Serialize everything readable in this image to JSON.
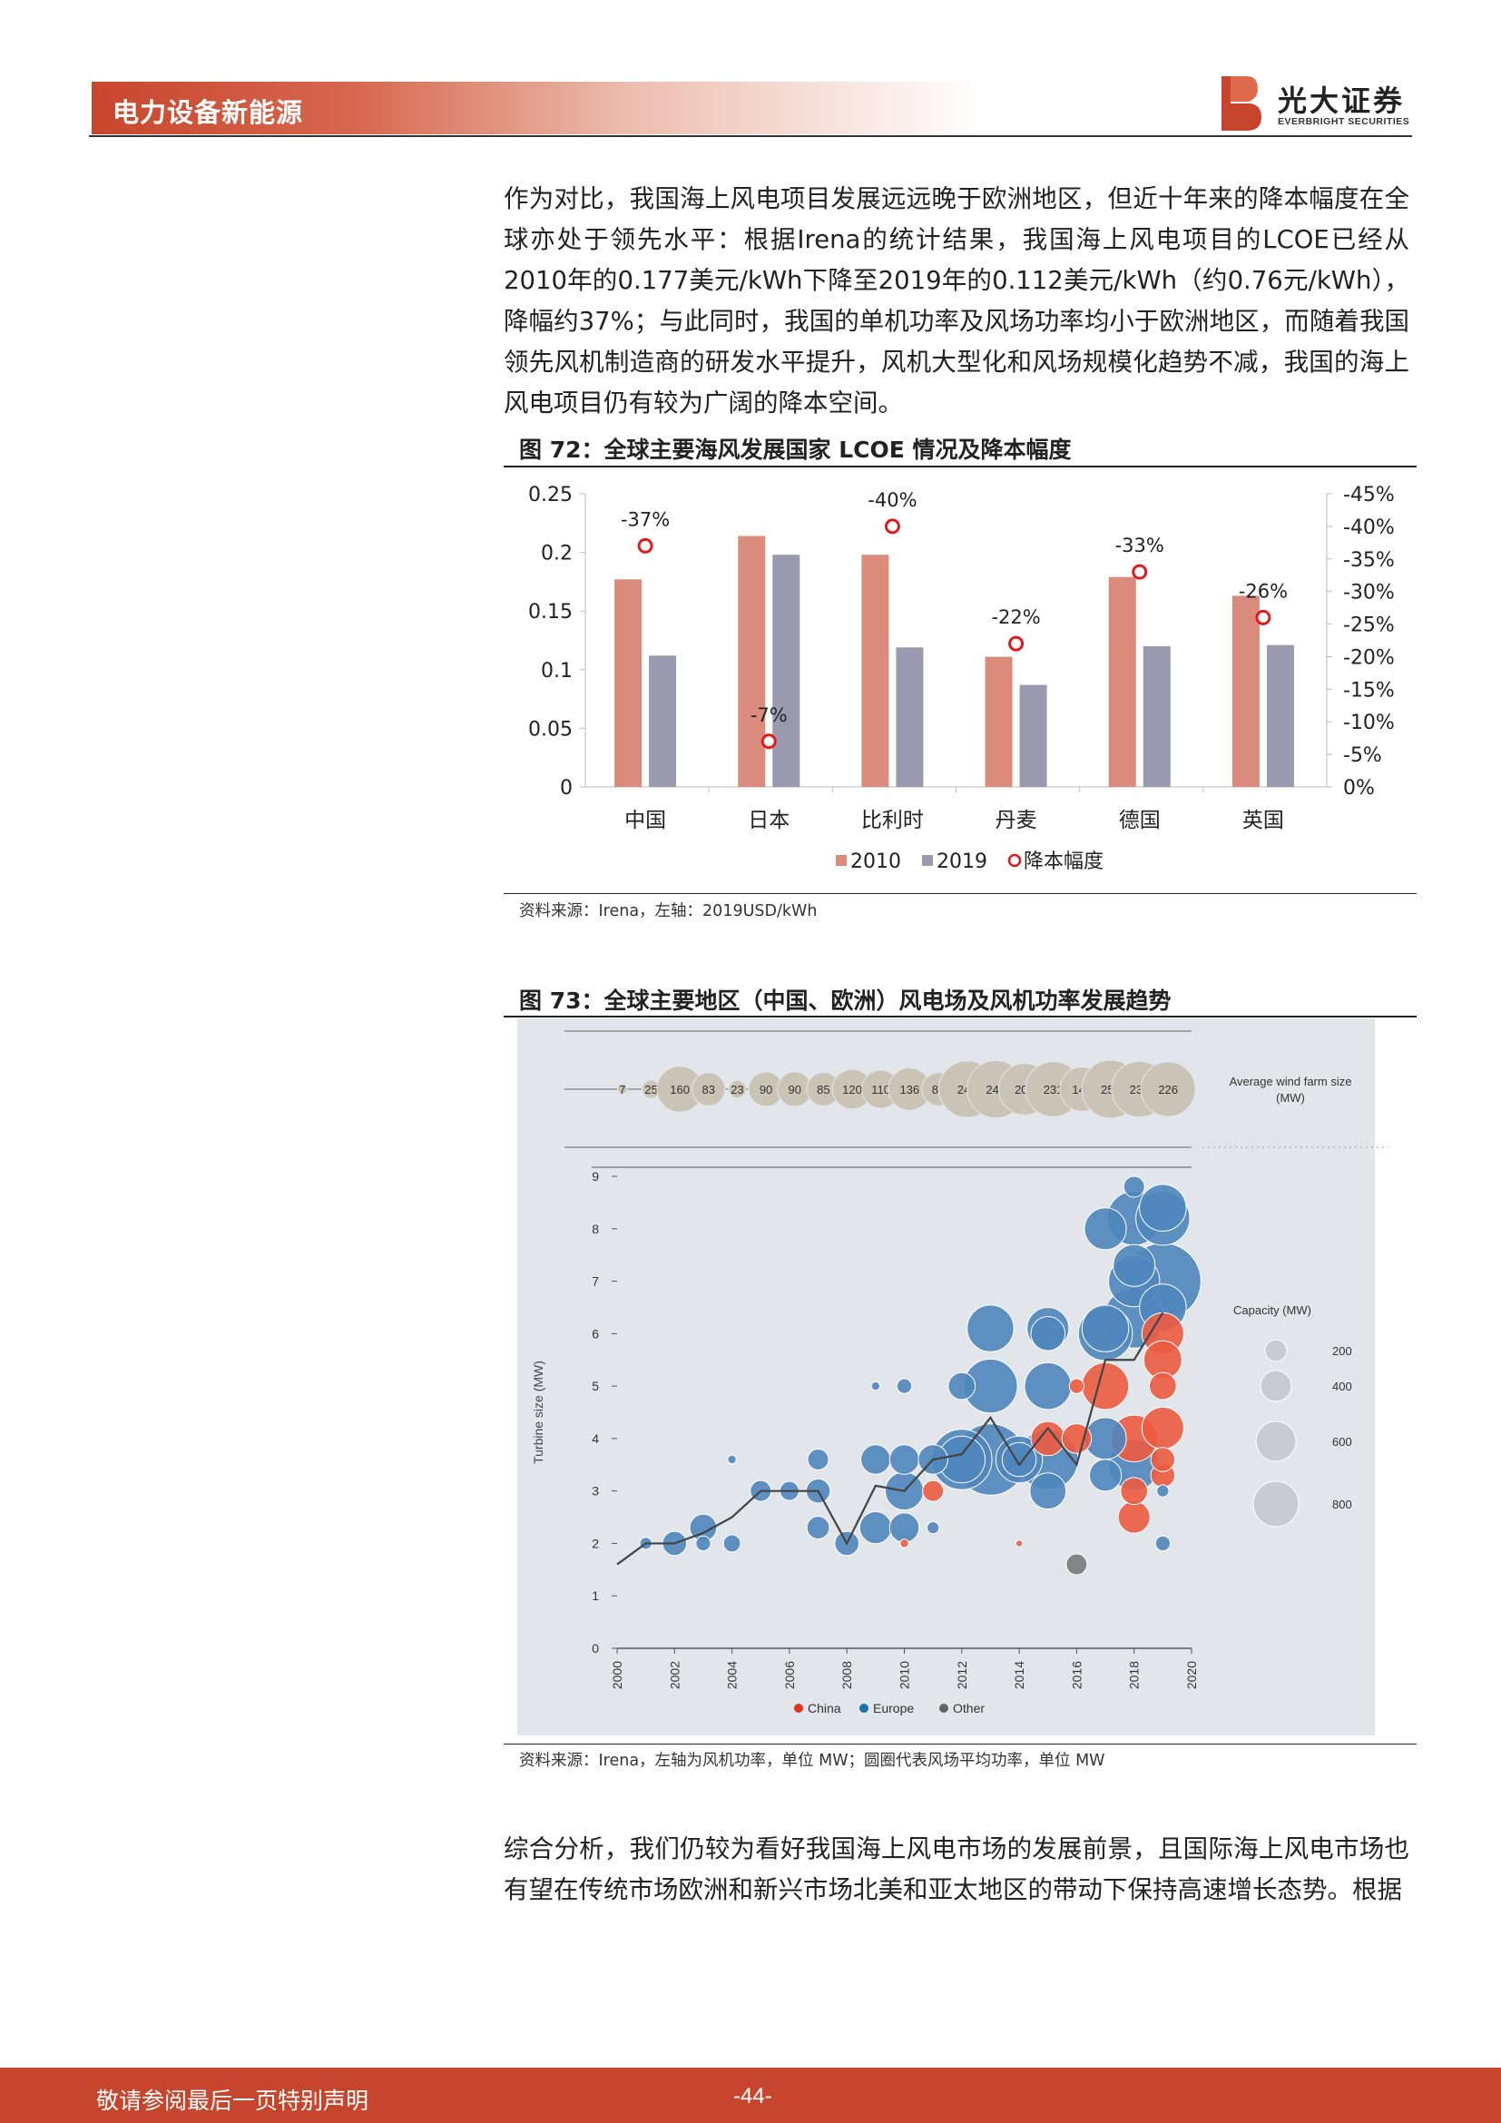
{
  "header": {
    "section_title": "电力设备新能源",
    "logo_cn": "光大证券",
    "logo_en": "EVERBRIGHT SECURITIES",
    "accent_color": "#c8452d"
  },
  "paragraph1": "作为对比，我国海上风电项目发展远远晚于欧洲地区，但近十年来的降本幅度在全球亦处于领先水平：根据Irena的统计结果，我国海上风电项目的LCOE已经从2010年的0.177美元/kWh下降至2019年的0.112美元/kWh（约0.76元/kWh），降幅约37%；与此同时，我国的单机功率及风场功率均小于欧洲地区，而随着我国领先风机制造商的研发水平提升，风机大型化和风场规模化趋势不减，我国的海上风电项目仍有较为广阔的降本空间。",
  "figure72": {
    "title": "图 72：全球主要海风发展国家 LCOE 情况及降本幅度",
    "source": "资料来源：Irena，左轴：2019USD/kWh"
  },
  "figure73": {
    "title": "图 73：全球主要地区（中国、欧洲）风电场及风机功率发展趋势",
    "source": "资料来源：Irena，左轴为风机功率，单位 MW；圆圈代表风场平均功率，单位 MW"
  },
  "paragraph2": "综合分析，我们仍较为看好我国海上风电市场的发展前景，且国际海上风电市场也有望在传统市场欧洲和新兴市场北美和亚太地区的带动下保持高速增长态势。根据",
  "footer": {
    "disclaimer": "敬请参阅最后一页特别声明",
    "page": "-44-"
  },
  "chart_data": [
    {
      "type": "bar",
      "categories": [
        "中国",
        "日本",
        "比利时",
        "丹麦",
        "德国",
        "英国"
      ],
      "series": [
        {
          "name": "2010",
          "color": "#db8b7b",
          "values": [
            0.177,
            0.214,
            0.198,
            0.111,
            0.179,
            0.163
          ]
        },
        {
          "name": "2019",
          "color": "#9a99ae",
          "values": [
            0.112,
            0.198,
            0.119,
            0.087,
            0.12,
            0.121
          ]
        },
        {
          "name": "降本幅度",
          "color": "#e31a1c",
          "marker": "circle",
          "axis": "right",
          "values": [
            -37,
            -7,
            -40,
            -22,
            -33,
            -26
          ],
          "labels": [
            "-37%",
            "-7%",
            "-40%",
            "-22%",
            "-33%",
            "-26%"
          ]
        }
      ],
      "ylim": [
        0,
        0.25
      ],
      "yticks": [
        "0",
        "0.05",
        "0.1",
        "0.15",
        "0.2",
        "0.25"
      ],
      "y2lim": [
        0,
        -45
      ],
      "y2ticks": [
        "0%",
        "-5%",
        "-10%",
        "-15%",
        "-20%",
        "-25%",
        "-30%",
        "-35%",
        "-40%",
        "-45%"
      ],
      "legend": "bottom"
    },
    {
      "type": "scatter",
      "top_row_label": "Average wind farm size (MW)",
      "top_row_values": [
        "7",
        "25",
        "160",
        "83",
        "23",
        "90",
        "90",
        "85",
        "120",
        "110",
        "136",
        "83",
        "241",
        "249",
        "201",
        "231",
        "149",
        "254",
        "235",
        "226"
      ],
      "top_row_years": [
        2000,
        2001,
        2002,
        2003,
        2004,
        2005,
        2006,
        2007,
        2008,
        2009,
        2010,
        2011,
        2012,
        2013,
        2014,
        2015,
        2016,
        2017,
        2018,
        2019
      ],
      "ylabel": "Turbine size (MW)",
      "ylim": [
        0,
        9
      ],
      "yticks": [
        "0",
        "1",
        "2",
        "3",
        "4",
        "5",
        "6",
        "7",
        "8",
        "9"
      ],
      "xlim": [
        2000,
        2020
      ],
      "xticks": [
        "2000",
        "2002",
        "2004",
        "2006",
        "2008",
        "2010",
        "2012",
        "2014",
        "2016",
        "2018",
        "2020"
      ],
      "size_legend_title": "Capacity (MW)",
      "size_legend": [
        "200",
        "400",
        "600",
        "800"
      ],
      "legend": [
        "China",
        "Europe",
        "Other"
      ],
      "legend_colors": [
        "#e8321e",
        "#1a6fad",
        "#666666"
      ],
      "avg_line": [
        [
          2000,
          1.6
        ],
        [
          2001,
          2.0
        ],
        [
          2002,
          2.0
        ],
        [
          2003,
          2.2
        ],
        [
          2004,
          2.5
        ],
        [
          2005,
          3.0
        ],
        [
          2006,
          3.0
        ],
        [
          2007,
          3.0
        ],
        [
          2008,
          2.0
        ],
        [
          2009,
          3.1
        ],
        [
          2010,
          3.0
        ],
        [
          2011,
          3.6
        ],
        [
          2012,
          3.7
        ],
        [
          2013,
          4.4
        ],
        [
          2014,
          3.5
        ],
        [
          2015,
          4.2
        ],
        [
          2016,
          3.5
        ],
        [
          2017,
          5.5
        ],
        [
          2018,
          5.5
        ],
        [
          2019,
          6.4
        ]
      ],
      "points": [
        [
          2001,
          2.0,
          10,
          "E"
        ],
        [
          2002,
          2.0,
          40,
          "E"
        ],
        [
          2003,
          2.3,
          50,
          "E"
        ],
        [
          2003,
          2.0,
          15,
          "E"
        ],
        [
          2004,
          2.0,
          20,
          "E"
        ],
        [
          2004,
          3.6,
          5,
          "E"
        ],
        [
          2005,
          3.0,
          30,
          "E"
        ],
        [
          2006,
          3.0,
          25,
          "E"
        ],
        [
          2007,
          3.6,
          30,
          "E"
        ],
        [
          2007,
          3.0,
          40,
          "E"
        ],
        [
          2007,
          2.3,
          35,
          "E"
        ],
        [
          2008,
          2.0,
          40,
          "E"
        ],
        [
          2009,
          3.6,
          60,
          "E"
        ],
        [
          2009,
          2.3,
          70,
          "E"
        ],
        [
          2009,
          5.0,
          5,
          "E"
        ],
        [
          2010,
          3.6,
          60,
          "E"
        ],
        [
          2010,
          3.0,
          100,
          "E"
        ],
        [
          2010,
          2.3,
          60,
          "E"
        ],
        [
          2010,
          5.0,
          15,
          "E"
        ],
        [
          2010,
          2.0,
          5,
          "C"
        ],
        [
          2011,
          3.0,
          30,
          "C"
        ],
        [
          2011,
          3.6,
          60,
          "E"
        ],
        [
          2011,
          2.3,
          10,
          "E"
        ],
        [
          2012,
          3.6,
          250,
          "E"
        ],
        [
          2012,
          5.0,
          50,
          "E"
        ],
        [
          2012,
          3.6,
          150,
          "E"
        ],
        [
          2013,
          3.6,
          350,
          "E"
        ],
        [
          2013,
          5.0,
          200,
          "E"
        ],
        [
          2013,
          6.1,
          150,
          "E"
        ],
        [
          2014,
          3.6,
          150,
          "E"
        ],
        [
          2014,
          3.6,
          80,
          "E"
        ],
        [
          2014,
          2.0,
          3,
          "C"
        ],
        [
          2015,
          3.6,
          250,
          "E"
        ],
        [
          2015,
          3.0,
          90,
          "E"
        ],
        [
          2015,
          4.0,
          80,
          "C"
        ],
        [
          2015,
          5.0,
          150,
          "E"
        ],
        [
          2015,
          6.1,
          120,
          "E"
        ],
        [
          2015,
          6.0,
          80,
          "E"
        ],
        [
          2016,
          4.0,
          60,
          "C"
        ],
        [
          2016,
          5.0,
          15,
          "C"
        ],
        [
          2016,
          1.6,
          30,
          "O"
        ],
        [
          2017,
          3.3,
          70,
          "E"
        ],
        [
          2017,
          4.0,
          120,
          "E"
        ],
        [
          2017,
          5.0,
          150,
          "C"
        ],
        [
          2017,
          6.0,
          200,
          "E"
        ],
        [
          2017,
          6.1,
          150,
          "E"
        ],
        [
          2017,
          8.0,
          120,
          "E"
        ],
        [
          2018,
          2.5,
          70,
          "C"
        ],
        [
          2018,
          3.0,
          50,
          "C"
        ],
        [
          2018,
          3.5,
          180,
          "E"
        ],
        [
          2018,
          4.0,
          150,
          "C"
        ],
        [
          2018,
          6.3,
          250,
          "E"
        ],
        [
          2018,
          7.0,
          180,
          "E"
        ],
        [
          2018,
          7.3,
          120,
          "E"
        ],
        [
          2018,
          8.2,
          200,
          "E"
        ],
        [
          2018,
          8.8,
          30,
          "E"
        ],
        [
          2019,
          2.0,
          15,
          "E"
        ],
        [
          2019,
          3.0,
          10,
          "E"
        ],
        [
          2019,
          3.3,
          40,
          "C"
        ],
        [
          2019,
          3.6,
          40,
          "C"
        ],
        [
          2019,
          4.2,
          120,
          "C"
        ],
        [
          2019,
          5.0,
          50,
          "C"
        ],
        [
          2019,
          5.5,
          100,
          "C"
        ],
        [
          2019,
          6.0,
          120,
          "C"
        ],
        [
          2019,
          6.5,
          150,
          "E"
        ],
        [
          2019,
          7.0,
          400,
          "E"
        ],
        [
          2019,
          8.2,
          200,
          "E"
        ],
        [
          2019,
          8.4,
          150,
          "E"
        ]
      ]
    }
  ]
}
